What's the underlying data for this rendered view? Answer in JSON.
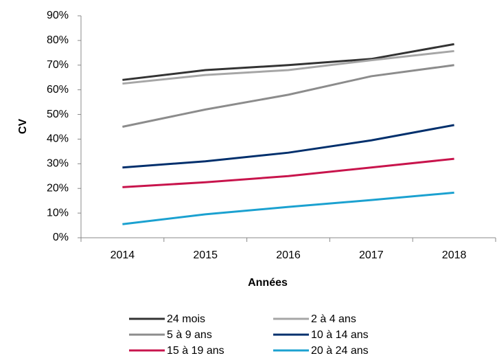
{
  "chart_data": {
    "type": "line",
    "x_label": "Années",
    "y_label": "CV",
    "categories": [
      "2014",
      "2015",
      "2016",
      "2017",
      "2018"
    ],
    "series": [
      {
        "name": "24 mois",
        "color": "#333333",
        "values": [
          64,
          68,
          70,
          72.5,
          78.5
        ]
      },
      {
        "name": "2 à 4 ans",
        "color": "#a6a6a6",
        "values": [
          62.5,
          66,
          68,
          72,
          75.7
        ]
      },
      {
        "name": "5 à 9 ans",
        "color": "#8c8c8c",
        "values": [
          45,
          52,
          58,
          65.5,
          70
        ]
      },
      {
        "name": "10 à 14 ans",
        "color": "#002f6c",
        "values": [
          28.5,
          31,
          34.5,
          39.5,
          45.7
        ]
      },
      {
        "name": "15 à 19 ans",
        "color": "#c8144c",
        "values": [
          20.5,
          22.5,
          25,
          28.5,
          32
        ]
      },
      {
        "name": "20 à 24 ans",
        "color": "#1ba1d0",
        "values": [
          5.5,
          9.5,
          12.5,
          15.3,
          18.3
        ]
      }
    ],
    "ylim": [
      0,
      90
    ],
    "yticks": [
      {
        "value": 0,
        "label": "0%"
      },
      {
        "value": 10,
        "label": "10%"
      },
      {
        "value": 20,
        "label": "20%"
      },
      {
        "value": 30,
        "label": "30%"
      },
      {
        "value": 40,
        "label": "40%"
      },
      {
        "value": 50,
        "label": "50%"
      },
      {
        "value": 60,
        "label": "60%"
      },
      {
        "value": 70,
        "label": "70%"
      },
      {
        "value": 80,
        "label": "80%"
      },
      {
        "value": 90,
        "label": "90%"
      }
    ],
    "grid": false,
    "legend": "bottom"
  }
}
